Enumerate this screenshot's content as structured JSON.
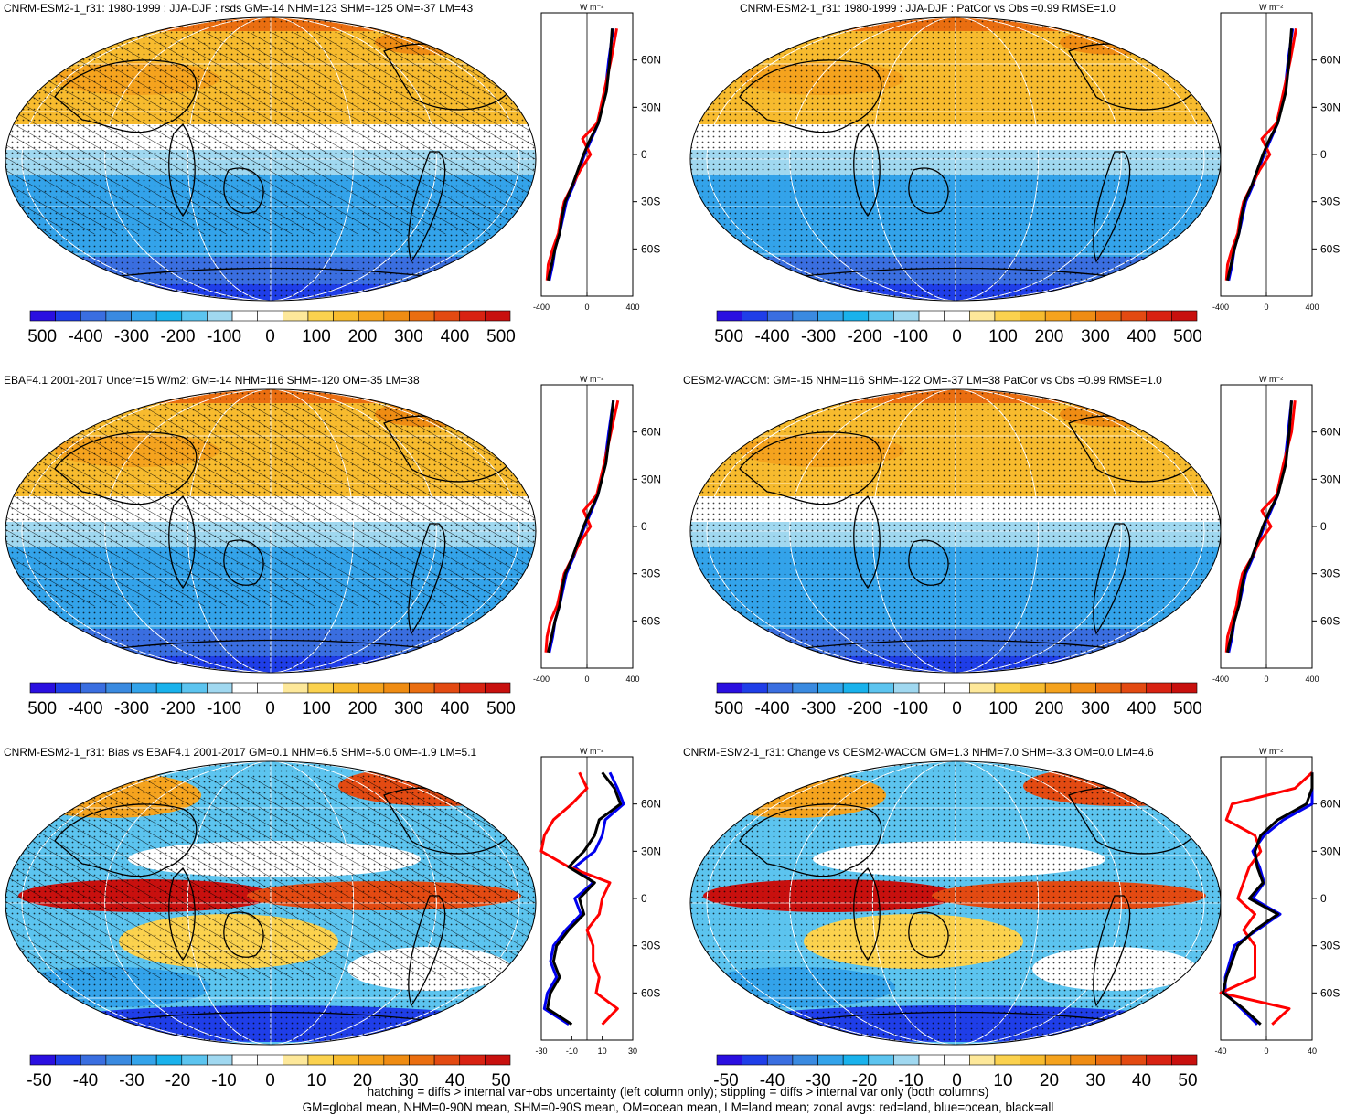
{
  "panels": [
    {
      "title": "CNRM-ESM2-1_r31: 1980-1999 : JJA-DJF : rsds GM=-14 NHM=123 SHM=-125 OM=-37 LM=43",
      "kind": "mean",
      "hatch": true,
      "cbar_labels": [
        "-500",
        "-400",
        "-300",
        "-200",
        "-100",
        "0",
        "100",
        "200",
        "300",
        "400",
        "500"
      ],
      "zonal_xticks": [
        "-400",
        "0",
        "400"
      ],
      "zonal_unit": "W m⁻²"
    },
    {
      "title": "CNRM-ESM2-1_r31: 1980-1999 : JJA-DJF : PatCor vs Obs =0.99 RMSE=1.0",
      "kind": "mean",
      "hatch": false,
      "cbar_labels": [
        "-500",
        "-400",
        "-300",
        "-200",
        "-100",
        "0",
        "100",
        "200",
        "300",
        "400",
        "500"
      ],
      "zonal_xticks": [
        "-400",
        "0",
        "400"
      ],
      "zonal_unit": "W m⁻²"
    },
    {
      "title": "EBAF4.1 2001-2017 Uncer=15 W/m2: GM=-14 NHM=116 SHM=-120 OM=-35 LM=38",
      "kind": "mean",
      "hatch": true,
      "cbar_labels": [
        "-500",
        "-400",
        "-300",
        "-200",
        "-100",
        "0",
        "100",
        "200",
        "300",
        "400",
        "500"
      ],
      "zonal_xticks": [
        "-400",
        "0",
        "400"
      ],
      "zonal_unit": "W m⁻²"
    },
    {
      "title": "CESM2-WACCM: GM=-15 NHM=116 SHM=-122 OM=-37 LM=38 PatCor vs Obs =0.99 RMSE=1.0",
      "kind": "mean",
      "hatch": false,
      "cbar_labels": [
        "-500",
        "-400",
        "-300",
        "-200",
        "-100",
        "0",
        "100",
        "200",
        "300",
        "400",
        "500"
      ],
      "zonal_xticks": [
        "-400",
        "0",
        "400"
      ],
      "zonal_unit": "W m⁻²"
    },
    {
      "title": "CNRM-ESM2-1_r31: Bias vs EBAF4.1 2001-2017 GM=0.1 NHM=6.5 SHM=-5.0 OM=-1.9 LM=5.1",
      "kind": "diff",
      "hatch": true,
      "cbar_labels": [
        "-50",
        "-40",
        "-30",
        "-20",
        "-10",
        "0",
        "10",
        "20",
        "30",
        "40",
        "50"
      ],
      "zonal_xticks": [
        "-30",
        "-10",
        "10",
        "30"
      ],
      "zonal_unit": "W m⁻²"
    },
    {
      "title": "CNRM-ESM2-1_r31: Change vs CESM2-WACCM GM=1.3 NHM=7.0 SHM=-3.3 OM=0.0 LM=4.6",
      "kind": "diff",
      "hatch": false,
      "cbar_labels": [
        "-50",
        "-40",
        "-30",
        "-20",
        "-10",
        "0",
        "10",
        "20",
        "30",
        "40",
        "50"
      ],
      "zonal_xticks": [
        "-40",
        "0",
        "40"
      ],
      "zonal_unit": "W m⁻²"
    }
  ],
  "lat_labels": [
    "60N",
    "30N",
    "0",
    "30S",
    "60S"
  ],
  "colorbar_colors": [
    "#2a0fe0",
    "#1f3ee8",
    "#3a6ee0",
    "#3a8ae0",
    "#33a3ea",
    "#19b2ec",
    "#5cc4ef",
    "#a0d8f0",
    "#ffffff",
    "#ffffff",
    "#fde89a",
    "#fbd24e",
    "#f7bb2e",
    "#f5a31e",
    "#ef8c13",
    "#ea6e10",
    "#e34a12",
    "#d82212",
    "#c8100e"
  ],
  "colors": {
    "land": "#ff0000",
    "ocean": "#0000ee",
    "all": "#000000",
    "grid": "#ffffff",
    "coast": "#000000"
  },
  "footer": {
    "line1": "hatching = diffs > internal var+obs uncertainty (left column only); stippling = diffs > internal var only (both columns)",
    "line2": "GM=global mean, NHM=0-90N mean, SHM=0-90S mean, OM=ocean mean, LM=land mean; zonal avgs: red=land, blue=ocean, black=all"
  },
  "chart_data": [
    {
      "type": "heatmap",
      "title": "CNRM-ESM2-1_r31: 1980-1999 : JJA-DJF : rsds GM=-14 NHM=123 SHM=-125 OM=-37 LM=43",
      "colorbar": [
        -500,
        -400,
        -300,
        -200,
        -100,
        0,
        100,
        200,
        300,
        400,
        500
      ],
      "zonal_mean": {
        "xlim": [
          -400,
          400
        ],
        "ylabels": [
          "60N",
          "30N",
          "0",
          "30S",
          "60S"
        ],
        "lat": [
          80,
          60,
          40,
          20,
          10,
          0,
          -10,
          -20,
          -30,
          -40,
          -50,
          -60,
          -70,
          -80
        ],
        "all": [
          220,
          200,
          170,
          100,
          30,
          -30,
          -80,
          -130,
          -190,
          -220,
          -240,
          -280,
          -310,
          -340
        ],
        "land": [
          260,
          210,
          150,
          90,
          -40,
          30,
          -60,
          -130,
          -200,
          -230,
          -250,
          -300,
          -340,
          -350
        ],
        "ocean": [
          230,
          190,
          160,
          100,
          40,
          -20,
          -70,
          -120,
          -180,
          -210,
          -240,
          -280,
          -300,
          -330
        ]
      }
    },
    {
      "type": "heatmap",
      "title": "CNRM-ESM2-1_r31: 1980-1999 : JJA-DJF : PatCor vs Obs =0.99 RMSE=1.0",
      "colorbar": [
        -500,
        -400,
        -300,
        -200,
        -100,
        0,
        100,
        200,
        300,
        400,
        500
      ],
      "zonal_mean": {
        "xlim": [
          -400,
          400
        ],
        "ylabels": [
          "60N",
          "30N",
          "0",
          "30S",
          "60S"
        ],
        "lat": [
          80,
          60,
          40,
          20,
          10,
          0,
          -10,
          -20,
          -30,
          -40,
          -50,
          -60,
          -70,
          -80
        ],
        "all": [
          220,
          200,
          170,
          100,
          30,
          -30,
          -80,
          -130,
          -190,
          -220,
          -240,
          -280,
          -310,
          -340
        ],
        "land": [
          260,
          210,
          150,
          90,
          -40,
          30,
          -60,
          -130,
          -200,
          -230,
          -250,
          -300,
          -340,
          -350
        ],
        "ocean": [
          230,
          190,
          160,
          100,
          40,
          -20,
          -70,
          -120,
          -180,
          -210,
          -240,
          -280,
          -300,
          -330
        ]
      }
    },
    {
      "type": "heatmap",
      "title": "EBAF4.1 2001-2017 Uncer=15 W/m2: GM=-14 NHM=116 SHM=-120 OM=-35 LM=38",
      "colorbar": [
        -500,
        -400,
        -300,
        -200,
        -100,
        0,
        100,
        200,
        300,
        400,
        500
      ],
      "zonal_mean": {
        "xlim": [
          -400,
          400
        ],
        "ylabels": [
          "60N",
          "30N",
          "0",
          "30S",
          "60S"
        ],
        "lat": [
          80,
          60,
          40,
          20,
          10,
          0,
          -10,
          -20,
          -30,
          -40,
          -50,
          -60,
          -70,
          -80
        ],
        "all": [
          230,
          200,
          165,
          95,
          30,
          -30,
          -80,
          -130,
          -190,
          -220,
          -240,
          -280,
          -310,
          -340
        ],
        "land": [
          270,
          210,
          150,
          85,
          -30,
          30,
          -60,
          -130,
          -200,
          -230,
          -260,
          -320,
          -350,
          -360
        ],
        "ocean": [
          230,
          190,
          155,
          95,
          40,
          -20,
          -70,
          -120,
          -180,
          -210,
          -240,
          -280,
          -300,
          -330
        ]
      }
    },
    {
      "type": "heatmap",
      "title": "CESM2-WACCM: GM=-15 NHM=116 SHM=-122 OM=-37 LM=38 PatCor vs Obs =0.99 RMSE=1.0",
      "colorbar": [
        -500,
        -400,
        -300,
        -200,
        -100,
        0,
        100,
        200,
        300,
        400,
        500
      ],
      "zonal_mean": {
        "xlim": [
          -400,
          400
        ],
        "ylabels": [
          "60N",
          "30N",
          "0",
          "30S",
          "60S"
        ],
        "lat": [
          80,
          60,
          40,
          20,
          10,
          0,
          -10,
          -20,
          -30,
          -40,
          -50,
          -60,
          -70,
          -80
        ],
        "all": [
          220,
          200,
          170,
          100,
          30,
          -30,
          -80,
          -130,
          -190,
          -220,
          -240,
          -280,
          -310,
          -340
        ],
        "land": [
          250,
          220,
          150,
          90,
          -40,
          40,
          -60,
          -130,
          -210,
          -240,
          -260,
          -300,
          -340,
          -350
        ],
        "ocean": [
          220,
          190,
          160,
          100,
          40,
          -20,
          -70,
          -120,
          -180,
          -210,
          -240,
          -280,
          -300,
          -330
        ]
      }
    },
    {
      "type": "heatmap",
      "title": "CNRM-ESM2-1_r31: Bias vs EBAF4.1 2001-2017 GM=0.1 NHM=6.5 SHM=-5.0 OM=-1.9 LM=5.1",
      "colorbar": [
        -50,
        -40,
        -30,
        -20,
        -10,
        0,
        10,
        20,
        30,
        40,
        50
      ],
      "zonal_mean": {
        "xlim": [
          -30,
          30
        ],
        "ylabels": [
          "60N",
          "30N",
          "0",
          "30S",
          "60S"
        ],
        "lat": [
          80,
          70,
          60,
          50,
          40,
          30,
          20,
          10,
          0,
          -10,
          -20,
          -30,
          -40,
          -50,
          -60,
          -70,
          -80
        ],
        "all": [
          10,
          18,
          22,
          8,
          5,
          -2,
          -12,
          5,
          -5,
          -2,
          -12,
          -20,
          -22,
          -18,
          -24,
          -26,
          -10
        ],
        "land": [
          -5,
          0,
          -10,
          -22,
          -28,
          -30,
          -12,
          15,
          10,
          8,
          0,
          4,
          4,
          8,
          6,
          20,
          10
        ],
        "ocean": [
          15,
          20,
          24,
          12,
          10,
          5,
          -8,
          4,
          -8,
          -4,
          -14,
          -22,
          -24,
          -20,
          -26,
          -28,
          -12
        ]
      }
    },
    {
      "type": "heatmap",
      "title": "CNRM-ESM2-1_r31: Change vs CESM2-WACCM GM=1.3 NHM=7.0 SHM=-3.3 OM=0.0 LM=4.6",
      "colorbar": [
        -50,
        -40,
        -30,
        -20,
        -10,
        0,
        10,
        20,
        30,
        40,
        50
      ],
      "zonal_mean": {
        "xlim": [
          -40,
          40
        ],
        "ylabels": [
          "60N",
          "30N",
          "0",
          "30S",
          "60S"
        ],
        "lat": [
          80,
          70,
          60,
          50,
          40,
          30,
          20,
          10,
          0,
          -10,
          -20,
          -30,
          -40,
          -50,
          -60,
          -70,
          -80
        ],
        "all": [
          55,
          50,
          35,
          10,
          -5,
          -10,
          -8,
          -3,
          -15,
          10,
          -10,
          -25,
          -30,
          -35,
          -38,
          -20,
          -5
        ],
        "land": [
          40,
          25,
          -30,
          -35,
          -10,
          -5,
          -15,
          -20,
          -25,
          -10,
          -20,
          -10,
          -10,
          -10,
          -45,
          20,
          5
        ],
        "ocean": [
          58,
          52,
          42,
          15,
          -2,
          -12,
          -6,
          -2,
          -12,
          12,
          -8,
          -28,
          -32,
          -36,
          -36,
          -22,
          -8
        ]
      }
    }
  ]
}
